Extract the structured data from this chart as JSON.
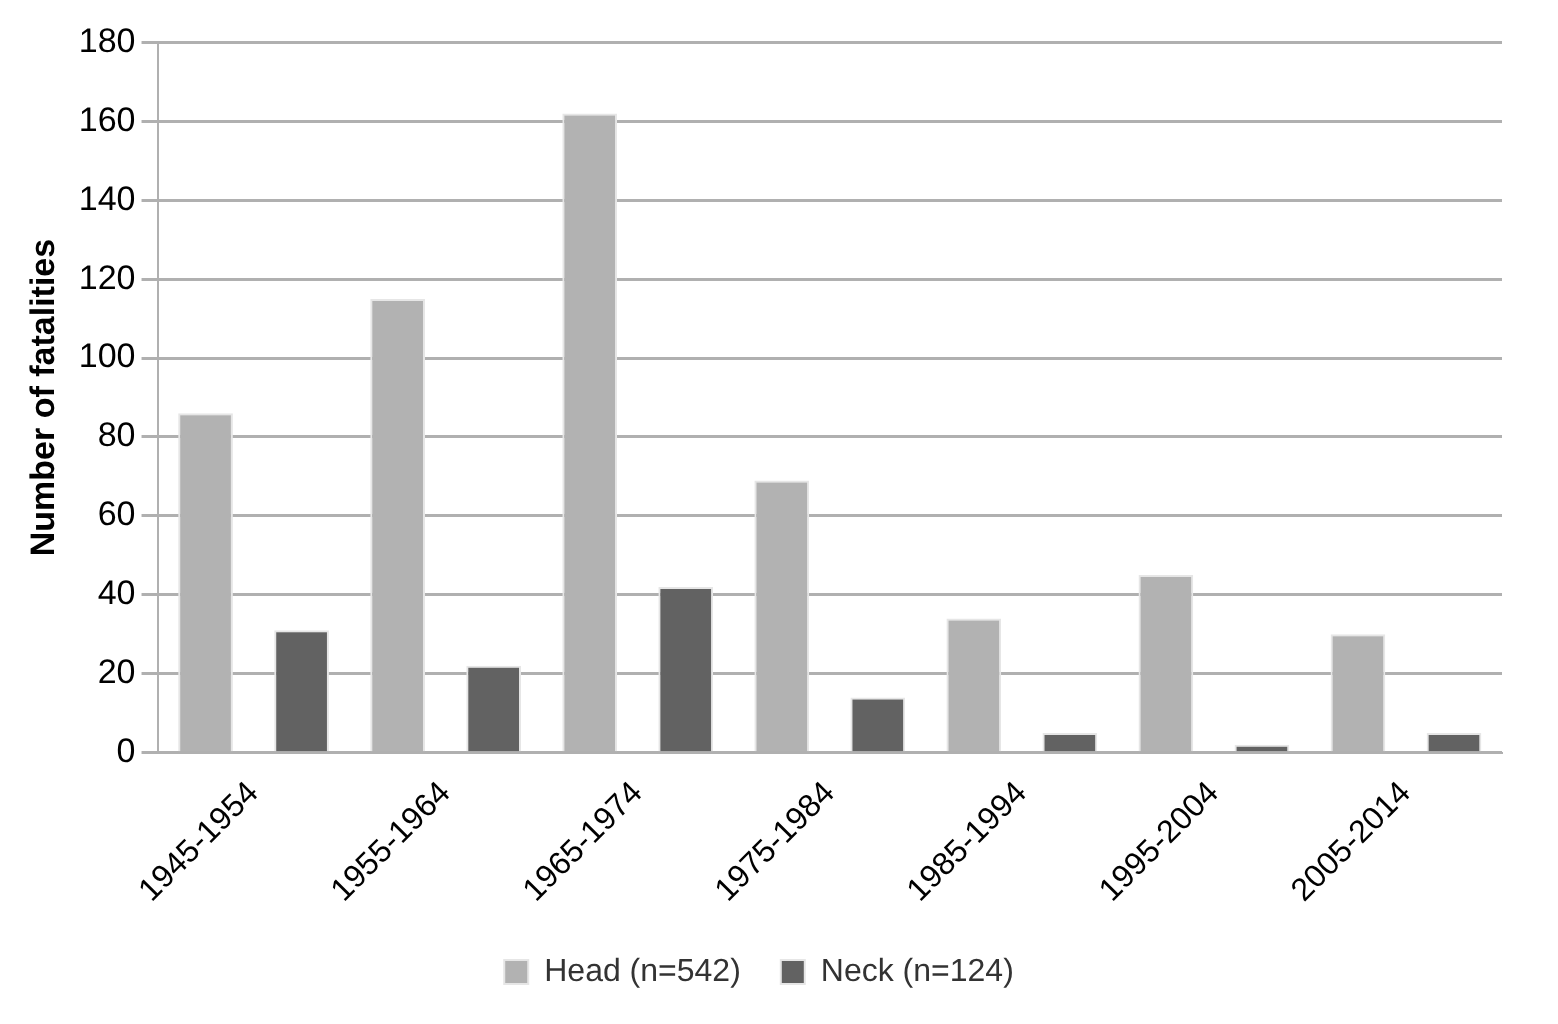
{
  "chart_data": {
    "type": "bar",
    "ylabel": "Number of fatalities",
    "categories": [
      "1945-1954",
      "1955-1964",
      "1965-1974",
      "1975-1984",
      "1985-1994",
      "1995-2004",
      "2005-2014"
    ],
    "series": [
      {
        "name": "Head (n=542)",
        "color": "#b2b2b2",
        "values": [
          86,
          115,
          162,
          69,
          34,
          45,
          30
        ]
      },
      {
        "name": "Neck (n=124)",
        "color": "#626262",
        "values": [
          31,
          22,
          42,
          14,
          5,
          2,
          5
        ]
      }
    ],
    "ylim": [
      0,
      180
    ],
    "yticks": [
      0,
      20,
      40,
      60,
      80,
      100,
      120,
      140,
      160,
      180
    ],
    "grid": "y",
    "legend": "bottom"
  }
}
